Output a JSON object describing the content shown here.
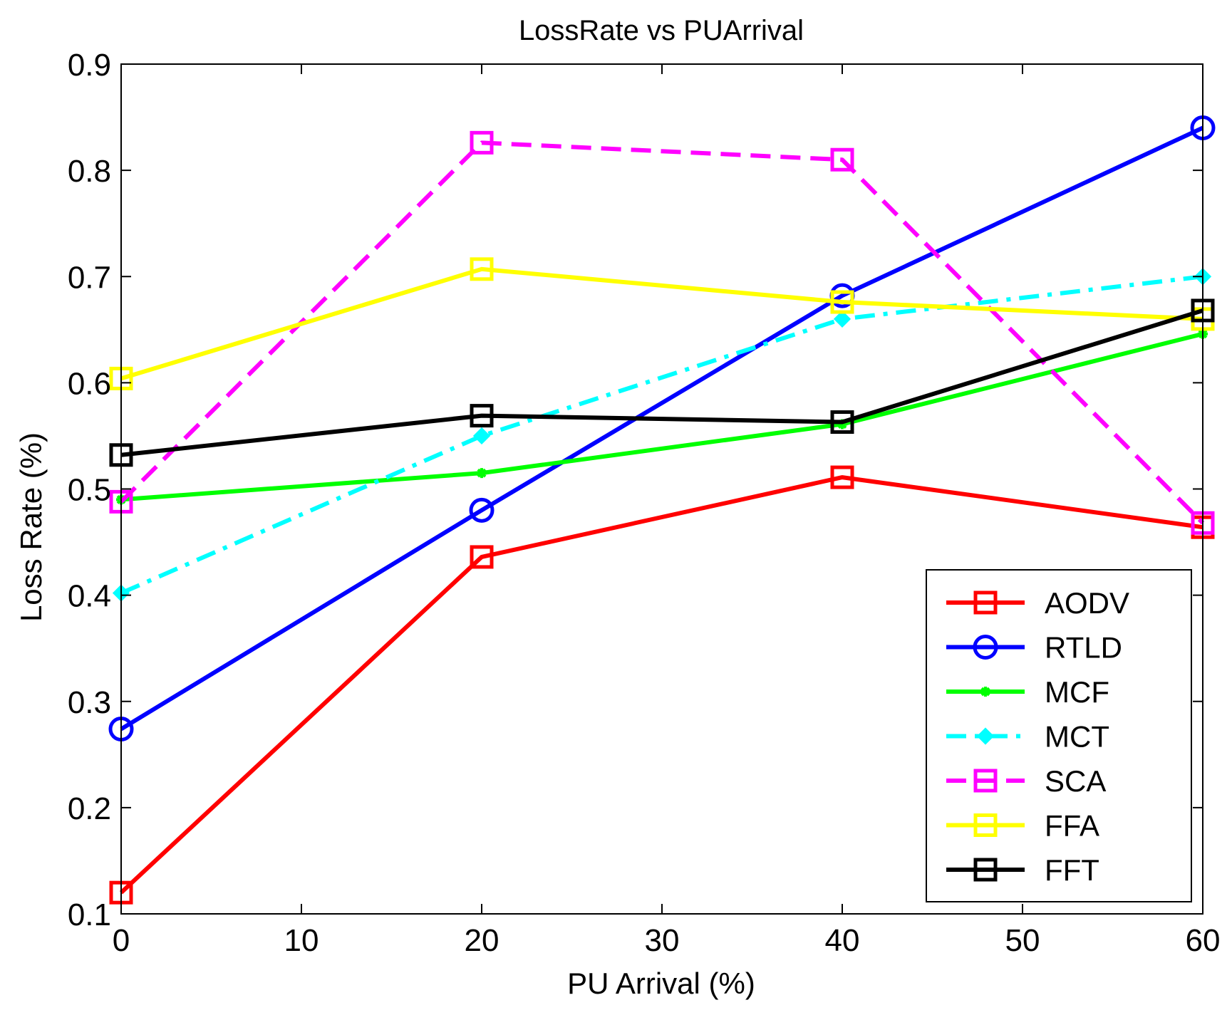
{
  "chart_data": {
    "type": "line",
    "title": "LossRate vs PUArrival",
    "xlabel": "PU Arrival (%)",
    "ylabel": "Loss Rate (%)",
    "xlim": [
      0,
      60
    ],
    "ylim": [
      0.1,
      0.9
    ],
    "xticks": [
      0,
      10,
      20,
      30,
      40,
      50,
      60
    ],
    "yticks": [
      0.1,
      0.2,
      0.3,
      0.4,
      0.5,
      0.6,
      0.7,
      0.8,
      0.9
    ],
    "xtick_labels": [
      "0",
      "10",
      "20",
      "30",
      "40",
      "50",
      "60"
    ],
    "ytick_labels": [
      "0.1",
      "0.2",
      "0.3",
      "0.4",
      "0.5",
      "0.6",
      "0.7",
      "0.8",
      "0.9"
    ],
    "grid": false,
    "legend_position": "bottom-right",
    "x": [
      0,
      20,
      40,
      60
    ],
    "series": [
      {
        "name": "AODV",
        "values": [
          0.12,
          0.436,
          0.511,
          0.464
        ],
        "color": "#ff0000",
        "dash": "solid",
        "marker": "square"
      },
      {
        "name": "RTLD",
        "values": [
          0.274,
          0.48,
          0.682,
          0.84
        ],
        "color": "#0000ff",
        "dash": "solid",
        "marker": "circle"
      },
      {
        "name": "MCF",
        "values": [
          0.49,
          0.515,
          0.561,
          0.646
        ],
        "color": "#00ff00",
        "dash": "solid",
        "marker": "star"
      },
      {
        "name": "MCT",
        "values": [
          0.402,
          0.55,
          0.66,
          0.7
        ],
        "color": "#00ffff",
        "dash": "dashdot",
        "marker": "diamond"
      },
      {
        "name": "SCA",
        "values": [
          0.488,
          0.826,
          0.81,
          0.468
        ],
        "color": "#ff00ff",
        "dash": "dashed",
        "marker": "square"
      },
      {
        "name": "FFA",
        "values": [
          0.604,
          0.707,
          0.676,
          0.66
        ],
        "color": "#ffff00",
        "dash": "solid",
        "marker": "square"
      },
      {
        "name": "FFT",
        "values": [
          0.532,
          0.569,
          0.563,
          0.668
        ],
        "color": "#000000",
        "dash": "solid",
        "marker": "square"
      }
    ]
  }
}
